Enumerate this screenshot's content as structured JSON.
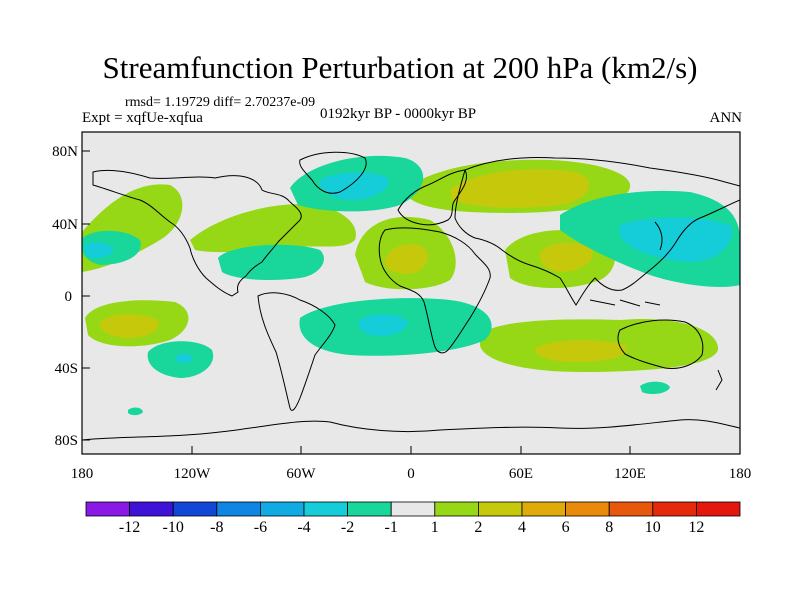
{
  "header": {
    "title": "Streamfunction Perturbation at 200 hPa (km2/s)",
    "stats": "rmsd= 1.19729 diff= 2.70237e-09",
    "experiment": "Expt = xqfUe-xqfua",
    "period": "0192kyr BP - 0000kyr BP",
    "season": "ANN"
  },
  "axes": {
    "y_ticks": [
      "80N",
      "40N",
      "0",
      "40S",
      "80S"
    ],
    "x_ticks": [
      "180",
      "120W",
      "60W",
      "0",
      "60E",
      "120E",
      "180"
    ]
  },
  "colorbar": {
    "labels": [
      "-12",
      "-10",
      "-8",
      "-6",
      "-4",
      "-2",
      "-1",
      "1",
      "2",
      "4",
      "6",
      "8",
      "10",
      "12"
    ],
    "colors": [
      "#8a18e6",
      "#3f12d8",
      "#1147d6",
      "#0f86e3",
      "#10abe2",
      "#14cdd8",
      "#19d69b",
      "#e8e8e8",
      "#96d815",
      "#c6c90b",
      "#dfaa0a",
      "#e98a0a",
      "#e8580c",
      "#e52a0c",
      "#e5160c"
    ]
  },
  "palette": {
    "neutral": "#e8e8e8",
    "pos_light": "#96d815",
    "pos_mid": "#c6c90b",
    "neg_light": "#19d69b",
    "neg_mid": "#14cdd8"
  }
}
